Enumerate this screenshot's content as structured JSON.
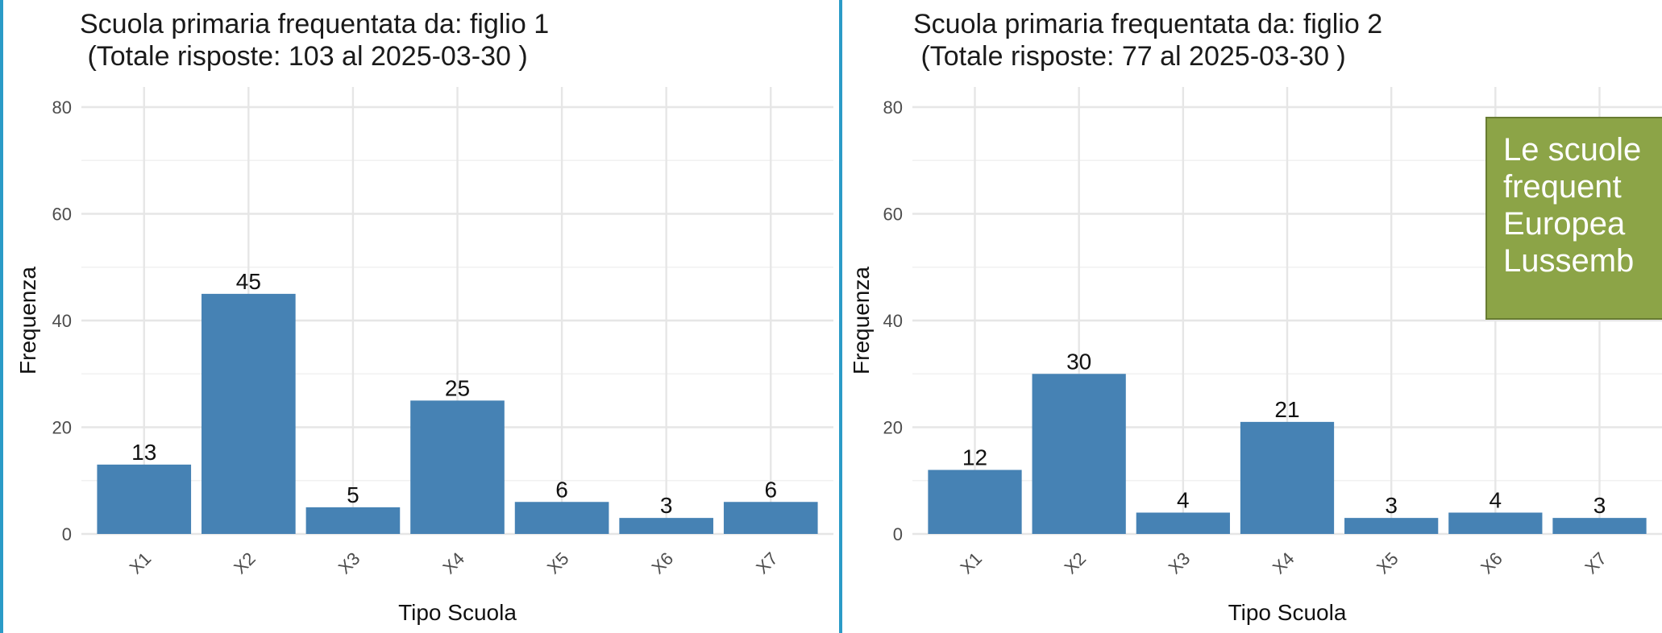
{
  "chart_data": [
    {
      "type": "bar",
      "title": "Scuola primaria frequentata da: figlio 1\n (Totale risposte: 103 al 2025-03-30 )",
      "xlabel": "Tipo Scuola",
      "ylabel": "Frequenza",
      "categories": [
        "X1",
        "X2",
        "X3",
        "X4",
        "X5",
        "X6",
        "X7"
      ],
      "values": [
        13,
        45,
        5,
        25,
        6,
        3,
        6
      ],
      "ylim": [
        0,
        80
      ],
      "yticks": [
        "0",
        "20",
        "40",
        "60",
        "80"
      ],
      "bar_color": "#4682b4",
      "grid": true
    },
    {
      "type": "bar",
      "title": "Scuola primaria frequentata da: figlio 2\n (Totale risposte: 77 al 2025-03-30 )",
      "xlabel": "Tipo Scuola",
      "ylabel": "Frequenza",
      "categories": [
        "X1",
        "X2",
        "X3",
        "X4",
        "X5",
        "X6",
        "X7"
      ],
      "values": [
        12,
        30,
        4,
        21,
        3,
        4,
        3
      ],
      "ylim": [
        0,
        80
      ],
      "yticks": [
        "0",
        "20",
        "40",
        "60",
        "80"
      ],
      "bar_color": "#4682b4",
      "grid": true
    }
  ],
  "callout": {
    "lines": [
      "Le scuole",
      "frequent",
      "Europea",
      "Lussemb"
    ],
    "background": "#8ca447"
  },
  "colors": {
    "panel_border": "#2b9bc7"
  }
}
